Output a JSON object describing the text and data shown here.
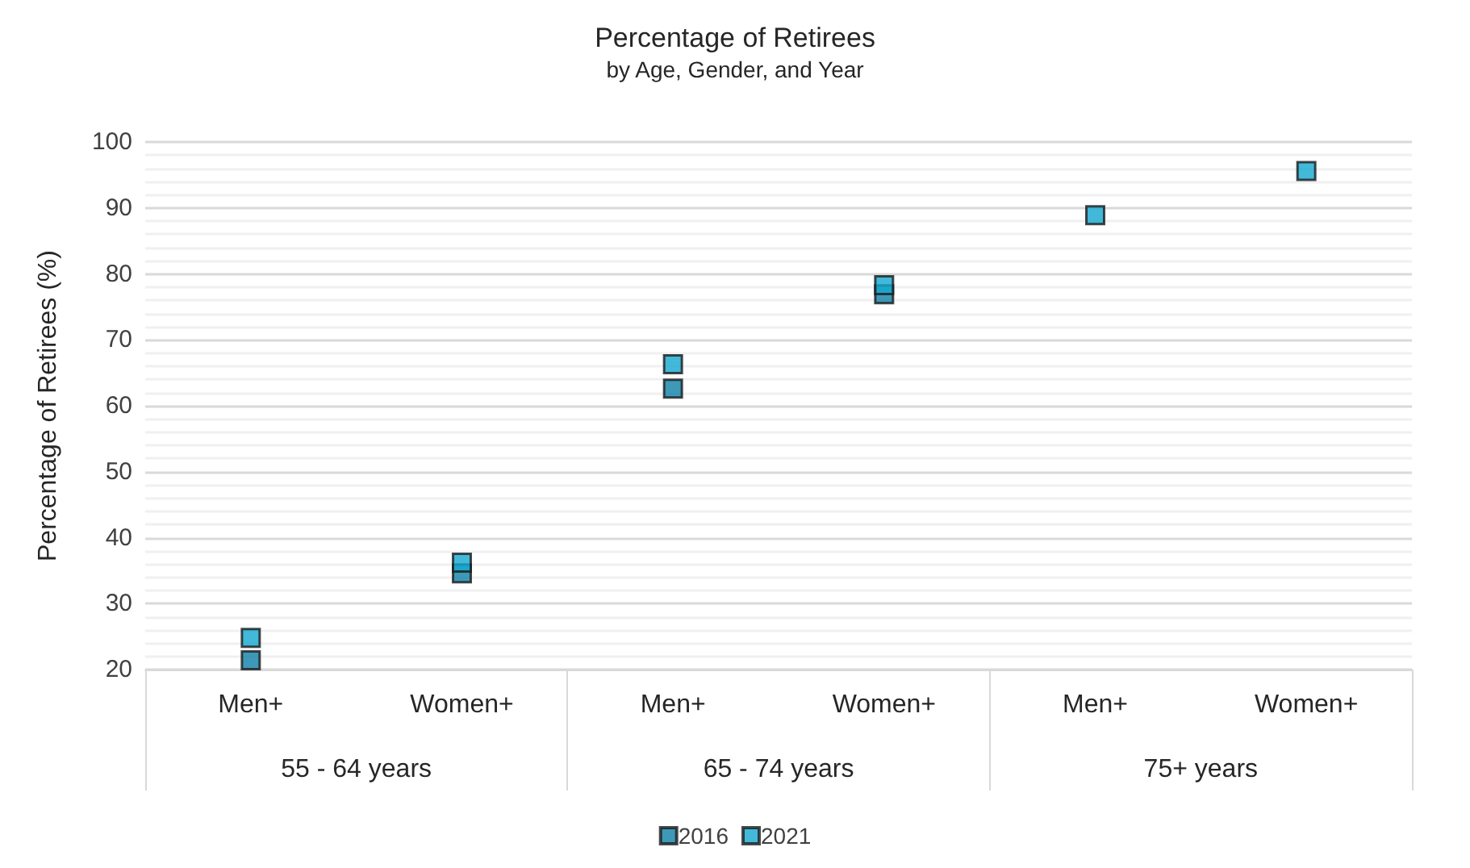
{
  "chart_data": {
    "type": "scatter",
    "title": "Percentage of Retirees",
    "subtitle": "by Age, Gender, and Year",
    "ylabel": "Percentage of Retirees (%)",
    "categories": [
      "Men+",
      "Women+",
      "Men+",
      "Women+",
      "Men+",
      "Women+"
    ],
    "annotations": [
      "55 - 64 years",
      "65 - 74 years",
      "75+ years"
    ],
    "series": [
      {
        "name": "2016",
        "color": "#0e7fa6",
        "values": [
          21.4,
          34.6,
          62.6,
          76.9,
          null,
          null
        ]
      },
      {
        "name": "2021",
        "color": "#13a8d0",
        "values": [
          24.8,
          36.2,
          66.3,
          78.3,
          88.9,
          95.6
        ]
      }
    ],
    "ylim": [
      20,
      100
    ],
    "yticks": [
      20,
      30,
      40,
      50,
      60,
      70,
      80,
      90,
      100
    ],
    "grid": true,
    "marker": "square",
    "legend": "bottom"
  }
}
